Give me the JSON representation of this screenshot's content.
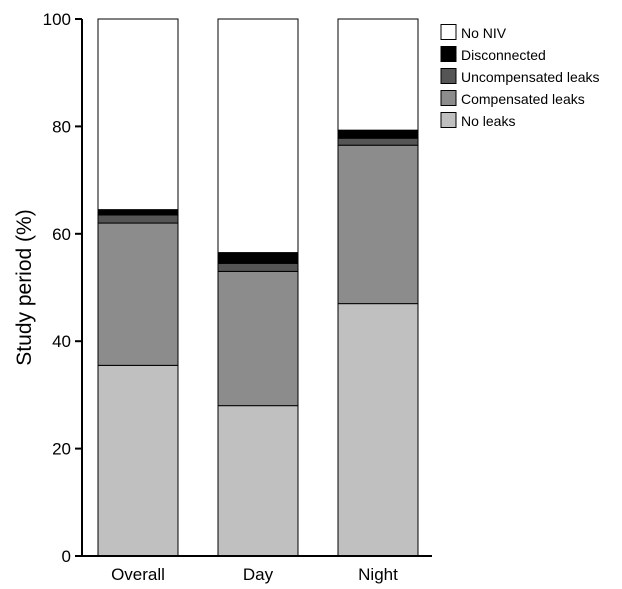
{
  "chart_data": {
    "type": "bar",
    "stacked": true,
    "categories": [
      "Overall",
      "Day",
      "Night"
    ],
    "series": [
      {
        "name": "No leaks",
        "color": "#c0c0c0",
        "values": [
          35.5,
          28.0,
          47.0
        ]
      },
      {
        "name": "Compensated leaks",
        "color": "#8c8c8c",
        "values": [
          26.5,
          25.0,
          29.5
        ]
      },
      {
        "name": "Uncompensated leaks",
        "color": "#555555",
        "values": [
          1.5,
          1.5,
          1.3
        ]
      },
      {
        "name": "Disconnected",
        "color": "#000000",
        "values": [
          1.0,
          2.0,
          1.5
        ]
      },
      {
        "name": "No NIV",
        "color": "#ffffff",
        "values": [
          35.5,
          43.5,
          20.7
        ]
      }
    ],
    "legend_order": [
      "No NIV",
      "Disconnected",
      "Uncompensated leaks",
      "Compensated leaks",
      "No leaks"
    ],
    "legend_placement": "top-right",
    "ylabel": "Study period (%)",
    "xlabel": "",
    "ylim": [
      0,
      100
    ],
    "yticks": [
      0,
      20,
      40,
      60,
      80,
      100
    ],
    "grid": false
  }
}
